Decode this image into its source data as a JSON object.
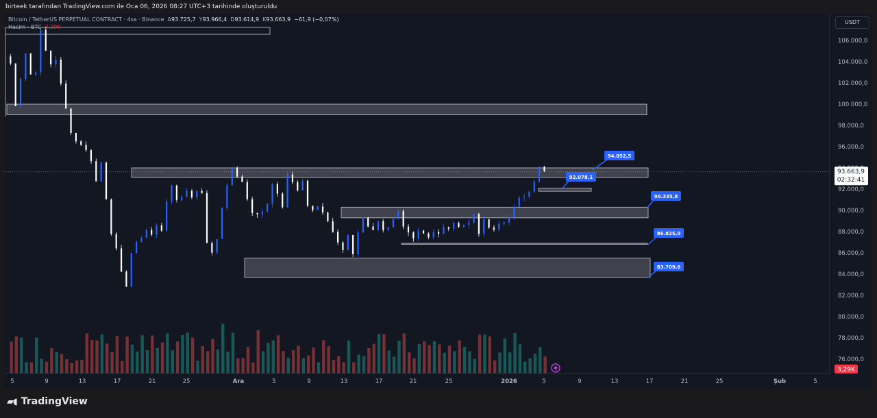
{
  "header": {
    "note": "birteek tarafından TradingView.com ile Oca 06, 2026 08:27 UTC+3 tarihinde oluşturuldu"
  },
  "legend": {
    "symbol": "Bitcoin / TetherUS PERPETUAL CONTRACT · 4sa · Binance",
    "open_label": "A",
    "open": "93.725,7",
    "high_label": "Y",
    "high": "93.966,4",
    "low_label": "D",
    "low": "93.614,9",
    "close_label": "K",
    "close": "93.663,9",
    "change": "−61,9 (−0,07%)",
    "volume_label": "Hacim · BTC",
    "volume_value": "3,29K"
  },
  "currency_button": "USDT",
  "branding": {
    "name": "TradingView"
  },
  "colors": {
    "background": "#131722",
    "candle_up": "#2962ff",
    "candle_down": "#ffffff",
    "volume_up": "#26a69a",
    "volume_down": "#ef5350",
    "callout": "#2962ff",
    "last_price_badge": "#ffffff",
    "volume_badge": "#f23645"
  },
  "chart_data": {
    "type": "candlestick",
    "symbol": "BTCUSDT.P",
    "timeframe": "4sa",
    "ylim": [
      75500,
      107800
    ],
    "y_ticks": [
      "106.000,0",
      "104.000,0",
      "102.000,0",
      "100.000,0",
      "98.000,0",
      "96.000,0",
      "94.000,0",
      "92.000,0",
      "90.000,0",
      "88.000,0",
      "86.000,0",
      "84.000,0",
      "82.000,0",
      "80.000,0",
      "78.000,0",
      "76.000,0"
    ],
    "y_tick_values": [
      106000,
      104000,
      102000,
      100000,
      98000,
      96000,
      94000,
      92000,
      90000,
      88000,
      86000,
      84000,
      82000,
      80000,
      78000,
      76000
    ],
    "x_ticks": [
      "5",
      "9",
      "13",
      "17",
      "21",
      "25",
      "Ara",
      "5",
      "9",
      "13",
      "17",
      "21",
      "25",
      "2026",
      "5",
      "9",
      "13",
      "17",
      "21",
      "25",
      "Şub",
      "5"
    ],
    "bold_x_ticks": [
      "Ara",
      "2026",
      "Şub"
    ],
    "price_path": [
      [
        0,
        104500
      ],
      [
        1,
        103800
      ],
      [
        2,
        100000
      ],
      [
        3,
        102500
      ],
      [
        4,
        104800
      ],
      [
        5,
        102800
      ],
      [
        6,
        103200
      ],
      [
        7,
        106800
      ],
      [
        8,
        105000
      ],
      [
        9,
        103800
      ],
      [
        10,
        104300
      ],
      [
        11,
        101800
      ],
      [
        12,
        99500
      ],
      [
        13,
        97500
      ],
      [
        14,
        96500
      ],
      [
        15,
        96300
      ],
      [
        16,
        95600
      ],
      [
        17,
        94800
      ],
      [
        18,
        92700
      ],
      [
        19,
        94500
      ],
      [
        20,
        91200
      ],
      [
        21,
        88000
      ],
      [
        22,
        86200
      ],
      [
        23,
        84000
      ],
      [
        24,
        83000
      ],
      [
        25,
        86000
      ],
      [
        26,
        86800
      ],
      [
        27,
        87600
      ],
      [
        28,
        88200
      ],
      [
        29,
        87700
      ],
      [
        30,
        88500
      ],
      [
        31,
        88200
      ],
      [
        32,
        91000
      ],
      [
        33,
        92100
      ],
      [
        34,
        91000
      ],
      [
        35,
        91400
      ],
      [
        36,
        91800
      ],
      [
        37,
        91300
      ],
      [
        38,
        92000
      ],
      [
        39,
        91500
      ],
      [
        40,
        87000
      ],
      [
        41,
        86100
      ],
      [
        42,
        87500
      ],
      [
        43,
        90000
      ],
      [
        44,
        92500
      ],
      [
        45,
        93800
      ],
      [
        46,
        93200
      ],
      [
        47,
        92800
      ],
      [
        48,
        91000
      ],
      [
        49,
        89800
      ],
      [
        50,
        89500
      ],
      [
        51,
        89800
      ],
      [
        52,
        90800
      ],
      [
        53,
        92600
      ],
      [
        54,
        91600
      ],
      [
        55,
        90500
      ],
      [
        56,
        93600
      ],
      [
        57,
        92700
      ],
      [
        58,
        91800
      ],
      [
        59,
        92700
      ],
      [
        60,
        90200
      ],
      [
        61,
        90100
      ],
      [
        62,
        90400
      ],
      [
        63,
        89800
      ],
      [
        64,
        89000
      ],
      [
        65,
        87800
      ],
      [
        66,
        87000
      ],
      [
        67,
        86300
      ],
      [
        68,
        87800
      ],
      [
        69,
        86000
      ],
      [
        70,
        87800
      ],
      [
        71,
        89500
      ],
      [
        72,
        88600
      ],
      [
        73,
        88000
      ],
      [
        74,
        88800
      ],
      [
        75,
        87900
      ],
      [
        76,
        88200
      ],
      [
        77,
        89000
      ],
      [
        78,
        89800
      ],
      [
        79,
        88400
      ],
      [
        80,
        87900
      ],
      [
        81,
        87600
      ],
      [
        82,
        88200
      ],
      [
        83,
        87900
      ],
      [
        84,
        87600
      ],
      [
        85,
        88000
      ],
      [
        86,
        87700
      ],
      [
        87,
        88300
      ],
      [
        88,
        88400
      ],
      [
        89,
        88600
      ],
      [
        90,
        88700
      ],
      [
        91,
        88700
      ],
      [
        92,
        88800
      ],
      [
        93,
        89700
      ],
      [
        94,
        88000
      ],
      [
        95,
        88900
      ],
      [
        96,
        88400
      ],
      [
        97,
        88000
      ],
      [
        98,
        88700
      ],
      [
        99,
        88900
      ],
      [
        100,
        89500
      ],
      [
        101,
        90200
      ],
      [
        102,
        91000
      ],
      [
        103,
        91400
      ],
      [
        104,
        92000
      ],
      [
        105,
        92900
      ],
      [
        106,
        94000
      ],
      [
        107,
        93700
      ]
    ],
    "zones": [
      {
        "from": 99000,
        "to": 100000
      },
      {
        "from": 93100,
        "to": 94000
      },
      {
        "from": 91800,
        "to": 92100
      },
      {
        "from": 89300,
        "to": 90300
      },
      {
        "from": 86800,
        "to": 86900
      },
      {
        "from": 83700,
        "to": 85500
      }
    ],
    "levels": [
      "94.052,5",
      "92.078,1",
      "90.335,8",
      "86.825,0",
      "83.709,6"
    ],
    "level_values": [
      94052.5,
      92078.1,
      90335.8,
      86825.0,
      83709.6
    ],
    "last_price": "93.663,9",
    "last_price_value": 93663.9,
    "countdown": "02:32:41",
    "volume_badge": "3,29K"
  }
}
